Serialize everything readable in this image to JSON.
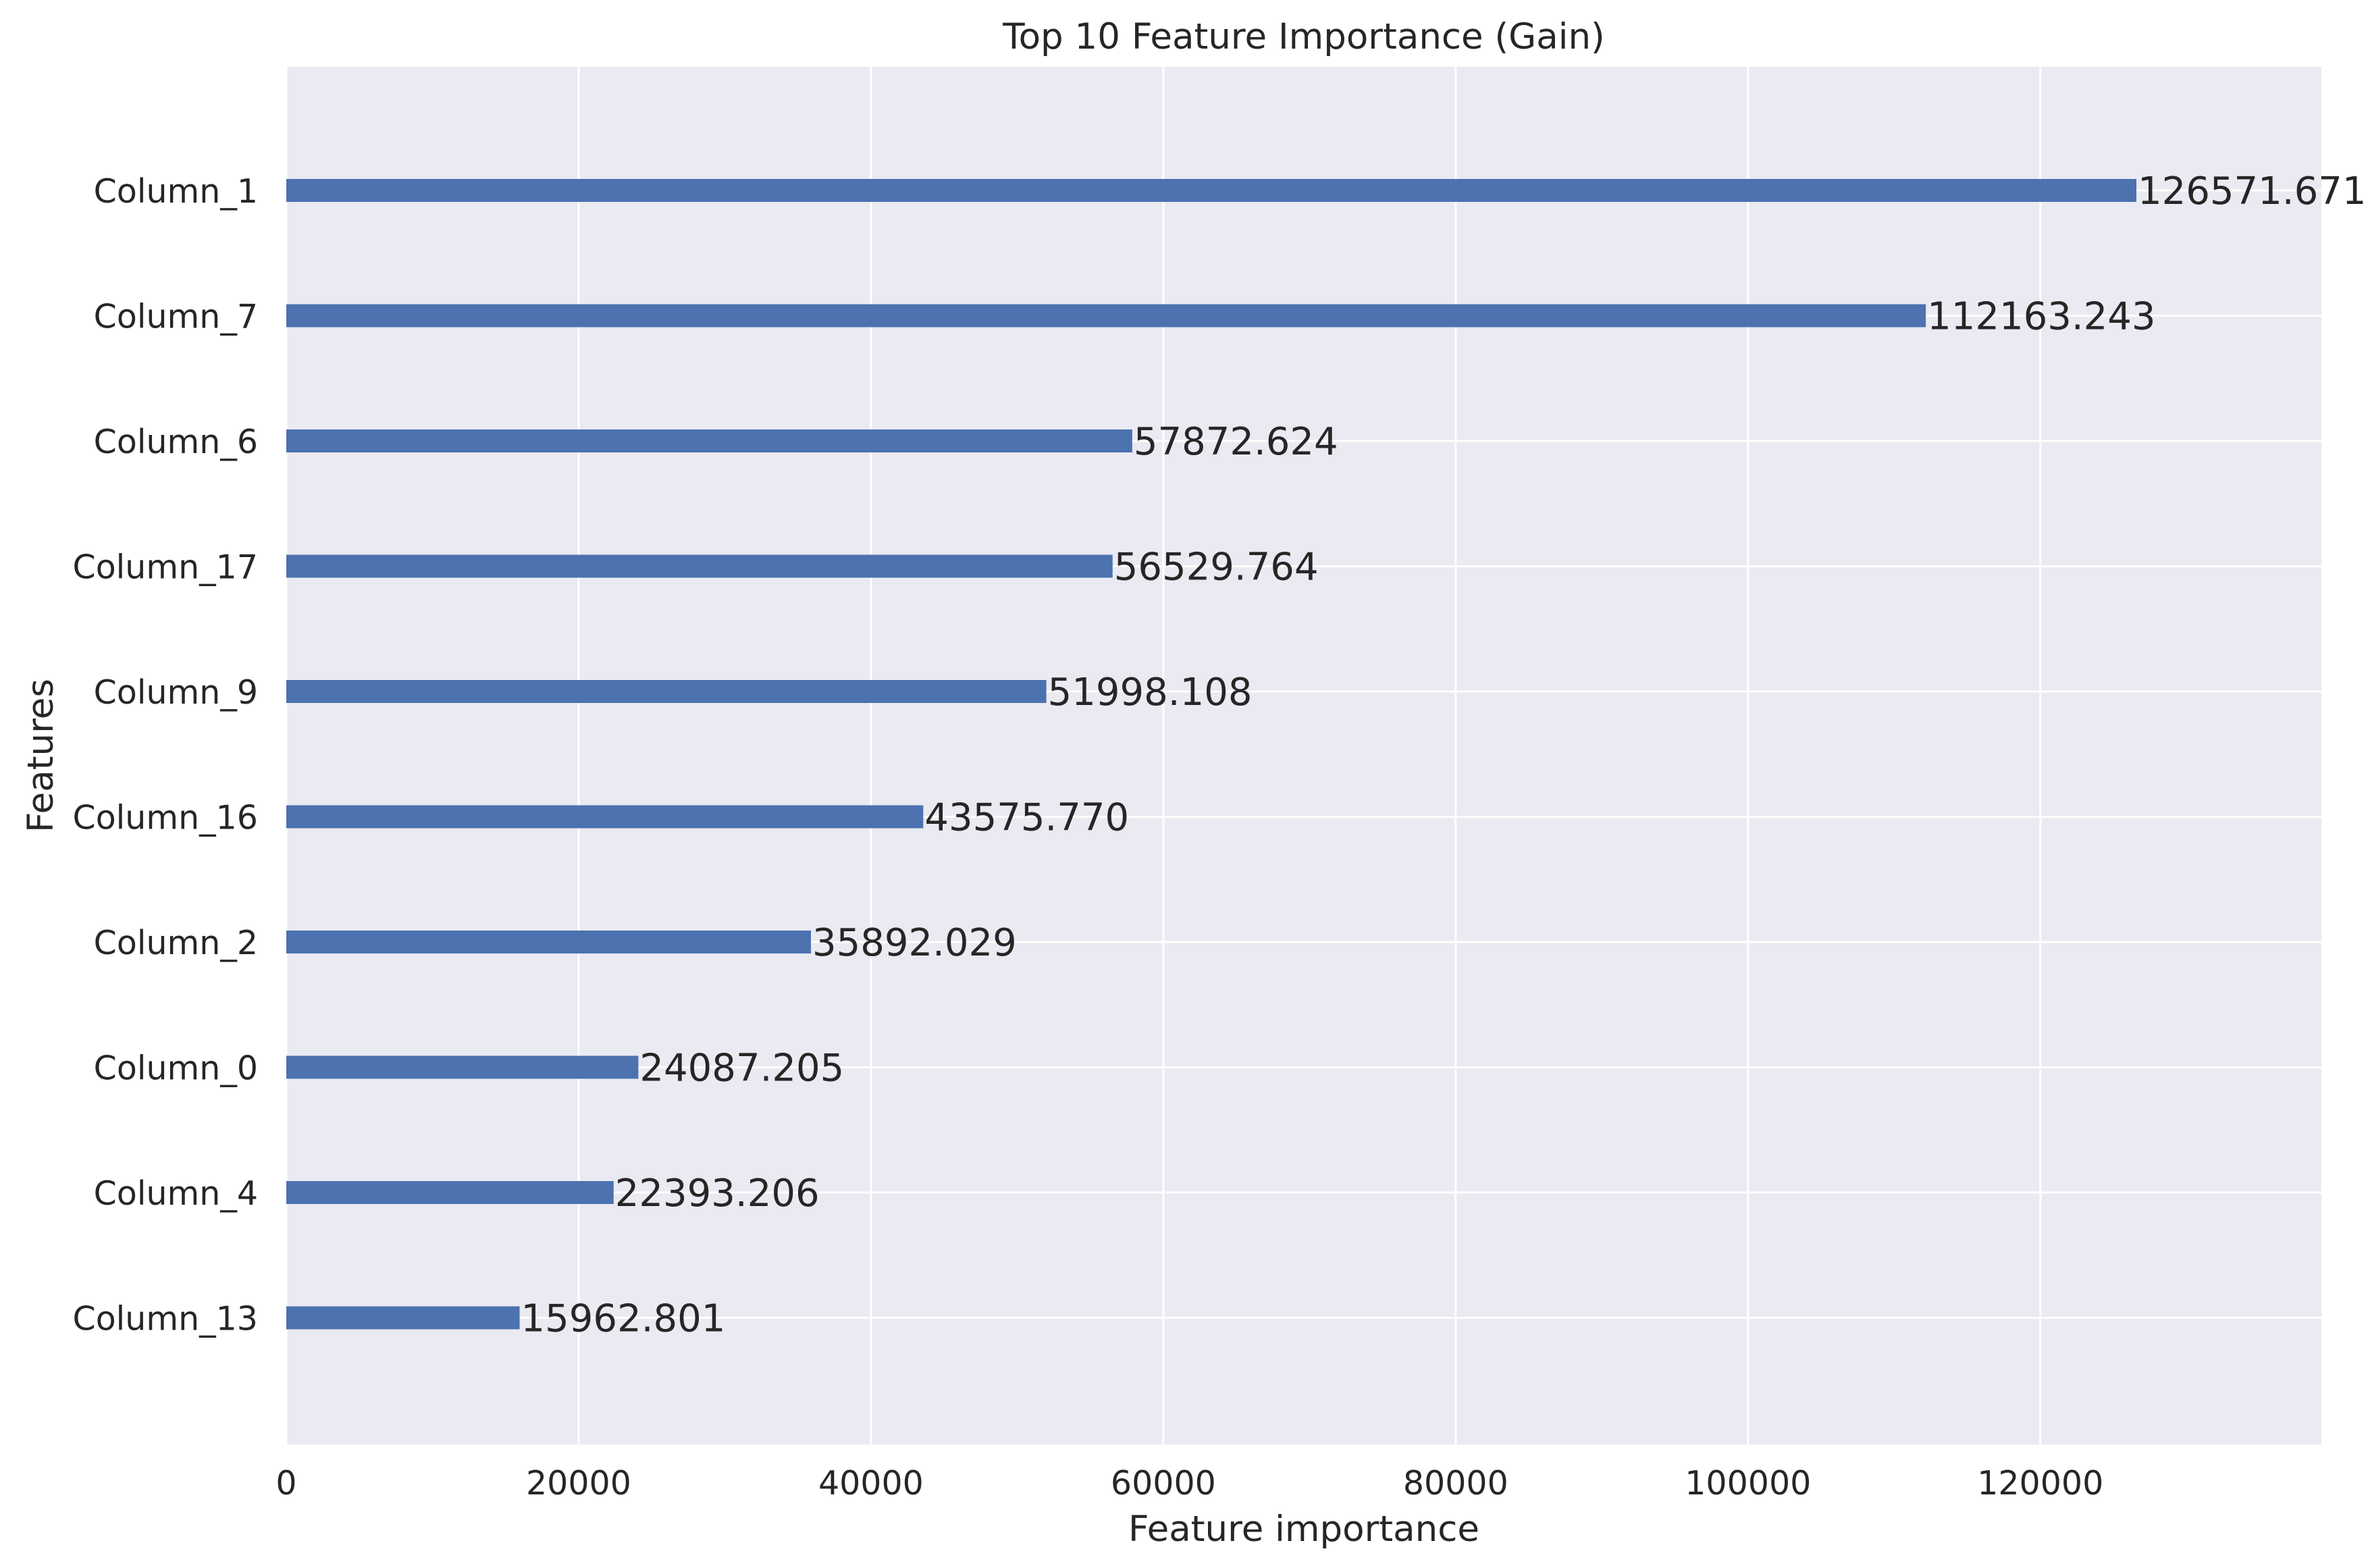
{
  "chart_data": {
    "type": "bar",
    "orientation": "horizontal",
    "title": "Top 10 Feature Importance (Gain)",
    "xlabel": "Feature importance",
    "ylabel": "Features",
    "categories": [
      "Column_1",
      "Column_7",
      "Column_6",
      "Column_17",
      "Column_9",
      "Column_16",
      "Column_2",
      "Column_0",
      "Column_4",
      "Column_13"
    ],
    "values": [
      126571.671,
      112163.243,
      57872.624,
      56529.764,
      51998.108,
      43575.77,
      35892.029,
      24087.205,
      22393.206,
      15962.801
    ],
    "value_labels": [
      "126571.671",
      "112163.243",
      "57872.624",
      "56529.764",
      "51998.108",
      "43575.770",
      "35892.029",
      "24087.205",
      "22393.206",
      "15962.801"
    ],
    "xticks": [
      "0",
      "20000",
      "40000",
      "60000",
      "80000",
      "100000",
      "120000"
    ],
    "xtick_values": [
      0,
      20000,
      40000,
      60000,
      80000,
      100000,
      120000
    ],
    "xlim": [
      0,
      139228.8
    ],
    "grid": true,
    "legend": "none",
    "colors": {
      "bar": "#4c72b0",
      "plot_background": "#eaeaf2",
      "grid": "#ffffff",
      "text": "#262626"
    }
  }
}
